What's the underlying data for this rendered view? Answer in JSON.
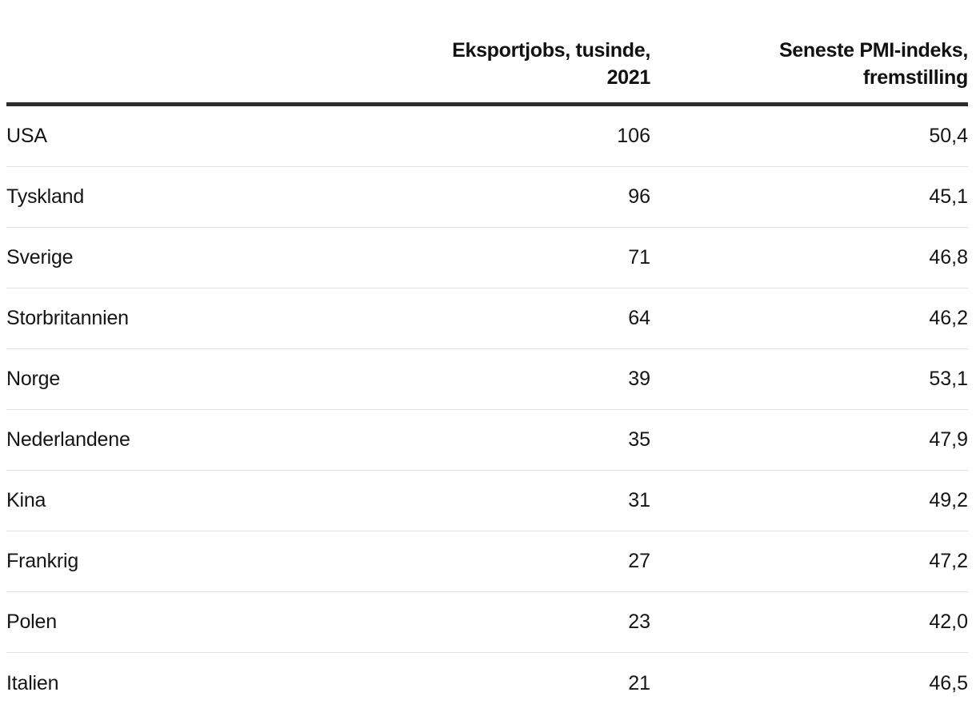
{
  "chart_data": {
    "type": "table",
    "title": "",
    "columns": [
      {
        "label": "",
        "align": "left"
      },
      {
        "label": "Eksportjobs, tusinde, 2021",
        "align": "right"
      },
      {
        "label": "Seneste PMI-indeks, fremstilling",
        "align": "right"
      }
    ],
    "rows": [
      {
        "country": "USA",
        "export_jobs": "106",
        "pmi": "50,4"
      },
      {
        "country": "Tyskland",
        "export_jobs": "96",
        "pmi": "45,1"
      },
      {
        "country": "Sverige",
        "export_jobs": "71",
        "pmi": "46,8"
      },
      {
        "country": "Storbritannien",
        "export_jobs": "64",
        "pmi": "46,2"
      },
      {
        "country": "Norge",
        "export_jobs": "39",
        "pmi": "53,1"
      },
      {
        "country": "Nederlandene",
        "export_jobs": "35",
        "pmi": "47,9"
      },
      {
        "country": "Kina",
        "export_jobs": "31",
        "pmi": "49,2"
      },
      {
        "country": "Frankrig",
        "export_jobs": "27",
        "pmi": "47,2"
      },
      {
        "country": "Polen",
        "export_jobs": "23",
        "pmi": "42,0"
      },
      {
        "country": "Italien",
        "export_jobs": "21",
        "pmi": "46,5"
      }
    ]
  },
  "header": {
    "jobs_label": "Eksportjobs, tusinde, 2021",
    "pmi_label_line1": "Seneste PMI-indeks,",
    "pmi_label_line2": "fremstilling"
  },
  "colors": {
    "top_rule": "#2e2e2e",
    "row_divider": "#e0e0e0",
    "text": "#151515",
    "background": "#ffffff"
  }
}
